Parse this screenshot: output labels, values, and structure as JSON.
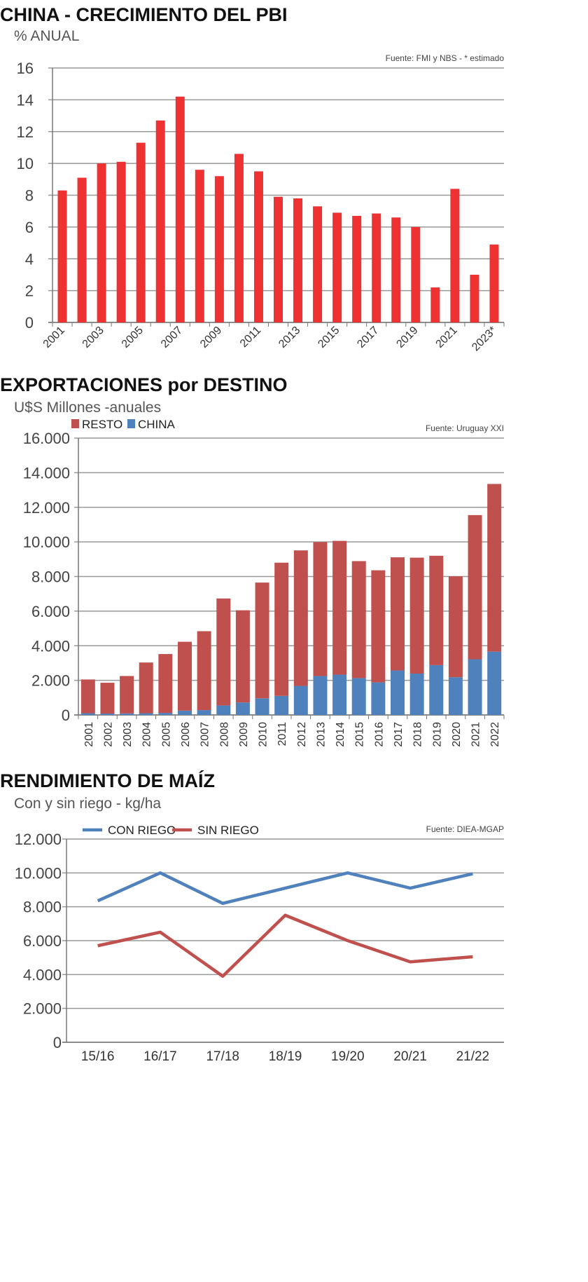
{
  "chart_data": [
    {
      "type": "bar",
      "title": "CHINA - CRECIMIENTO DEL PBI",
      "subtitle": "% ANUAL",
      "source": "Fuente: FMI y NBS - * estimado",
      "categories": [
        "2001",
        "2002",
        "2003",
        "2004",
        "2005",
        "2006",
        "2007",
        "2008",
        "2009",
        "2010",
        "2011",
        "2012",
        "2013",
        "2014",
        "2015",
        "2016",
        "2017",
        "2018",
        "2019",
        "2020",
        "2021",
        "2022",
        "2023*"
      ],
      "tick_labels": [
        "2001",
        "2003",
        "2005",
        "2007",
        "2009",
        "2011",
        "2013",
        "2015",
        "2017",
        "2019",
        "2021",
        "2023*"
      ],
      "values": [
        8.3,
        9.1,
        10.0,
        10.1,
        11.3,
        12.7,
        14.2,
        9.6,
        9.2,
        10.6,
        9.5,
        7.9,
        7.8,
        7.3,
        6.9,
        6.7,
        6.85,
        6.6,
        6.0,
        2.2,
        8.4,
        3.0,
        4.9
      ],
      "yticks": [
        "0",
        "2",
        "4",
        "6",
        "8",
        "10",
        "12",
        "14",
        "16"
      ],
      "ylim": [
        0,
        16
      ],
      "grid": true,
      "color": "#ee3131"
    },
    {
      "type": "bar",
      "stacked": true,
      "title": "EXPORTACIONES por DESTINO",
      "subtitle": "U$S Millones -anuales",
      "source": "Fuente: Uruguay XXI",
      "categories": [
        "2001",
        "2002",
        "2003",
        "2004",
        "2005",
        "2006",
        "2007",
        "2008",
        "2009",
        "2010",
        "2011",
        "2012",
        "2013",
        "2014",
        "2015",
        "2016",
        "2017",
        "2018",
        "2019",
        "2020",
        "2021",
        "2022"
      ],
      "series": [
        {
          "name": "CHINA",
          "color": "#4f81bd",
          "values": [
            100,
            80,
            90,
            100,
            120,
            250,
            280,
            550,
            720,
            960,
            1100,
            1680,
            2250,
            2330,
            2130,
            1880,
            2570,
            2390,
            2880,
            2180,
            3220,
            3660
          ]
        },
        {
          "name": "RESTO",
          "color": "#c0504d",
          "values": [
            1950,
            1780,
            2160,
            2930,
            3400,
            3980,
            4560,
            6180,
            5330,
            6690,
            7700,
            7830,
            7740,
            7730,
            6760,
            6480,
            6540,
            6700,
            6320,
            5830,
            8330,
            9690
          ]
        }
      ],
      "legend": [
        "RESTO",
        "CHINA"
      ],
      "yticks": [
        "0",
        "2.000",
        "4.000",
        "6.000",
        "8.000",
        "10.000",
        "12.000",
        "14.000",
        "16.000"
      ],
      "ylim": [
        0,
        16000
      ],
      "grid": true,
      "legend_placement": "top-left"
    },
    {
      "type": "line",
      "title": "RENDIMIENTO DE MAÍZ",
      "subtitle": "Con y sin riego - kg/ha",
      "source": "Fuente: DIEA-MGAP",
      "categories": [
        "15/16",
        "16/17",
        "17/18",
        "18/19",
        "19/20",
        "20/21",
        "21/22"
      ],
      "series": [
        {
          "name": "CON RIEGO",
          "color": "#4f81bd",
          "values": [
            8350,
            10000,
            8200,
            9100,
            10000,
            9100,
            9950
          ]
        },
        {
          "name": "SIN RIEGO",
          "color": "#c0504d",
          "values": [
            5700,
            6500,
            3900,
            7500,
            6000,
            4750,
            5050
          ]
        }
      ],
      "yticks": [
        "0",
        "2.000",
        "4.000",
        "6.000",
        "8.000",
        "10.000",
        "12.000"
      ],
      "ylim": [
        0,
        12000
      ],
      "grid": true,
      "legend_placement": "top-left"
    }
  ]
}
